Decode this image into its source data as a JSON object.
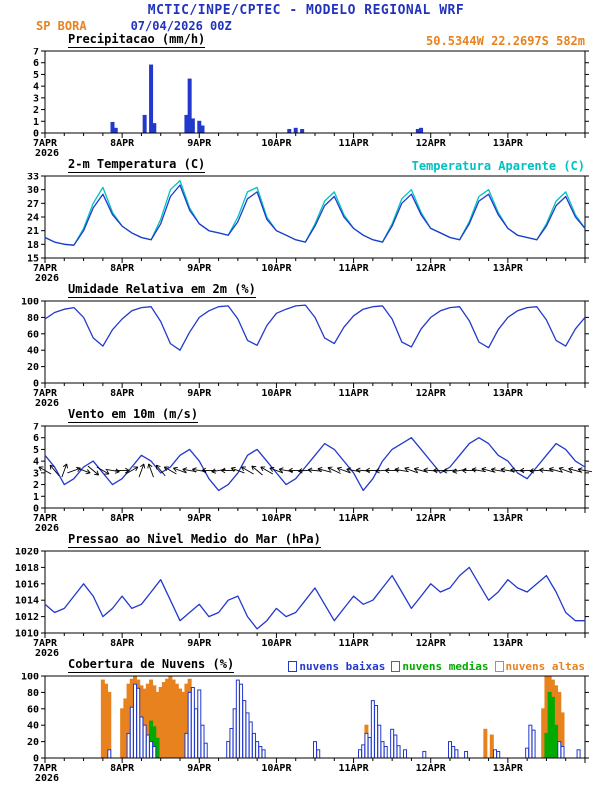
{
  "header": {
    "title": "MCTIC/INPE/CPTEC - MODELO REGIONAL WRF",
    "station": "SP BORA",
    "run": "07/04/2026 00Z",
    "location": "50.5344W 22.2697S 582m"
  },
  "colors": {
    "title_blue": "#2233bb",
    "orange": "#e8821e",
    "line_blue": "#2239cc",
    "cyan": "#00c2c2",
    "green": "#00aa00",
    "bar_blue": "#2239cc",
    "black": "#000000"
  },
  "xaxis": {
    "labels": [
      "7APR",
      "8APR",
      "9APR",
      "10APR",
      "11APR",
      "12APR",
      "13APR"
    ],
    "year": "2026",
    "hours_range": [
      0,
      168
    ],
    "tick_every_hours": 24,
    "minor_tick_hours": 6
  },
  "chart_data": [
    {
      "type": "bar",
      "kind": "precip",
      "title": "Precipitacao (mm/h)",
      "ylabel": "mm/h",
      "ylim": [
        0,
        7
      ],
      "yticks": [
        0,
        1,
        2,
        3,
        4,
        5,
        6,
        7
      ],
      "bars": [
        [
          21,
          0.9
        ],
        [
          22,
          0.4
        ],
        [
          31,
          1.5
        ],
        [
          33,
          5.8
        ],
        [
          34,
          0.8
        ],
        [
          44,
          1.5
        ],
        [
          45,
          4.6
        ],
        [
          46,
          1.2
        ],
        [
          48,
          1.0
        ],
        [
          49,
          0.6
        ],
        [
          76,
          0.3
        ],
        [
          78,
          0.4
        ],
        [
          80,
          0.3
        ],
        [
          116,
          0.3
        ],
        [
          117,
          0.4
        ]
      ]
    },
    {
      "type": "line",
      "kind": "lines",
      "title": "2-m Temperatura (C)",
      "legend_right": "Temperatura Aparente (C)",
      "ylabel": "C",
      "ylim": [
        15,
        33
      ],
      "yticks": [
        15,
        18,
        21,
        24,
        27,
        30,
        33
      ],
      "step": 3,
      "series": [
        {
          "name": "Temperatura Aparente (C)",
          "color": "#00c2c2",
          "values": [
            19.5,
            18.5,
            18,
            17.8,
            21.5,
            27,
            30.5,
            25,
            22,
            20.5,
            19.5,
            19,
            23.5,
            30,
            32,
            26,
            22.5,
            21,
            20.5,
            20,
            24,
            29.5,
            30.5,
            24,
            21,
            20,
            19,
            18.5,
            22.5,
            27.5,
            29.5,
            24.5,
            21.5,
            20,
            19,
            18.5,
            22.5,
            28,
            30,
            25,
            21.5,
            20.5,
            19.5,
            19,
            23,
            28.5,
            30,
            25,
            21.5,
            20,
            19.5,
            19,
            22.5,
            27.5,
            29.5,
            24.5,
            21.5
          ]
        },
        {
          "name": "2-m Temperatura (C)",
          "color": "#2239cc",
          "values": [
            19.5,
            18.5,
            18,
            17.8,
            21,
            26,
            29,
            24.5,
            22,
            20.5,
            19.5,
            19,
            22.5,
            28.5,
            31,
            25.5,
            22.5,
            21,
            20.5,
            20,
            23,
            28,
            29.5,
            23.5,
            21,
            20,
            19,
            18.5,
            22,
            26.5,
            28.5,
            24,
            21.5,
            20,
            19,
            18.5,
            22,
            27,
            29,
            24.5,
            21.5,
            20.5,
            19.5,
            19,
            22.5,
            27.5,
            29,
            24.5,
            21.5,
            20,
            19.5,
            19,
            22,
            26.5,
            28.5,
            24,
            21.5
          ]
        }
      ]
    },
    {
      "type": "line",
      "kind": "lines",
      "title": "Umidade Relativa em 2m (%)",
      "ylabel": "%",
      "ylim": [
        0,
        100
      ],
      "yticks": [
        0,
        20,
        40,
        60,
        80,
        100
      ],
      "step": 3,
      "series": [
        {
          "name": "Umidade Relativa",
          "color": "#2239cc",
          "values": [
            78,
            86,
            90,
            92,
            80,
            55,
            45,
            65,
            78,
            88,
            92,
            93,
            75,
            48,
            40,
            62,
            80,
            88,
            93,
            94,
            78,
            52,
            46,
            70,
            85,
            90,
            94,
            95,
            80,
            55,
            48,
            68,
            82,
            90,
            93,
            94,
            78,
            50,
            44,
            66,
            80,
            88,
            92,
            93,
            76,
            50,
            43,
            65,
            80,
            88,
            92,
            93,
            77,
            52,
            45,
            66,
            80
          ]
        }
      ]
    },
    {
      "type": "line",
      "kind": "wind",
      "title": "Vento em 10m (m/s)",
      "ylabel": "m/s",
      "ylim": [
        0,
        7
      ],
      "yticks": [
        0,
        1,
        2,
        3,
        4,
        5,
        6,
        7
      ],
      "step": 3,
      "series": [
        {
          "name": "Vento 10m",
          "color": "#2239cc",
          "values": [
            4.5,
            3.5,
            2,
            2.5,
            3.5,
            4,
            3,
            2,
            2.5,
            3.5,
            4.5,
            4,
            3,
            3.5,
            4.5,
            5,
            4,
            2.5,
            1.5,
            2,
            3,
            4.5,
            5,
            4,
            3,
            2,
            2.5,
            3.5,
            4.5,
            5.5,
            5,
            4,
            3,
            1.5,
            2.5,
            4,
            5,
            5.5,
            6,
            5,
            4,
            3,
            3.5,
            4.5,
            5.5,
            6,
            5.5,
            4.5,
            4,
            3,
            2.5,
            3.5,
            4.5,
            5.5,
            5,
            4,
            3.5
          ]
        }
      ],
      "arrows": {
        "color": "#000000",
        "baseline_value": 3.2,
        "dirs_deg": [
          120,
          140,
          200,
          250,
          290,
          310,
          300,
          280,
          270,
          240,
          200,
          160,
          140,
          120,
          110,
          100,
          100,
          90,
          80,
          90,
          110,
          120,
          130,
          120,
          110,
          100,
          90,
          85,
          95,
          105,
          115,
          110,
          100,
          95,
          90,
          85,
          90,
          100,
          110,
          105,
          95,
          90,
          85,
          80,
          90,
          100,
          105,
          100,
          100,
          95,
          90,
          85,
          95,
          105,
          110,
          105,
          100
        ]
      }
    },
    {
      "type": "line",
      "kind": "lines",
      "title": "Pressao ao Nivel Medio do Mar (hPa)",
      "ylabel": "hPa",
      "ylim": [
        1010,
        1020
      ],
      "yticks": [
        1010,
        1012,
        1014,
        1016,
        1018,
        1020
      ],
      "step": 3,
      "series": [
        {
          "name": "Pressao Nivel do Mar",
          "color": "#2239cc",
          "values": [
            1013.5,
            1012.5,
            1013,
            1014.5,
            1016,
            1014.5,
            1012,
            1013,
            1014.5,
            1013,
            1013.5,
            1015,
            1016.5,
            1014,
            1011.5,
            1012.5,
            1013.5,
            1012,
            1012.5,
            1014,
            1014.5,
            1012,
            1010.5,
            1011.5,
            1013,
            1012,
            1012.5,
            1014,
            1015.5,
            1013.5,
            1011.5,
            1013,
            1014.5,
            1013.5,
            1014,
            1015.5,
            1017,
            1015,
            1013,
            1014.5,
            1016,
            1015,
            1015.5,
            1017,
            1018,
            1016,
            1014,
            1015,
            1016.5,
            1015.5,
            1015,
            1016,
            1017,
            1015,
            1012.5,
            1011.5,
            1011.5
          ]
        }
      ]
    },
    {
      "type": "bar",
      "kind": "clouds",
      "title": "Cobertura de Nuvens (%)",
      "ylabel": "%",
      "ylim": [
        0,
        100
      ],
      "yticks": [
        0,
        20,
        40,
        60,
        80,
        100
      ],
      "legend": [
        {
          "label": "nuvens baixas",
          "color": "#2239cc"
        },
        {
          "label": "nuvens medias",
          "color": "#00aa00"
        },
        {
          "label": "nuvens altas",
          "color": "#e8821e"
        }
      ],
      "bar_series": [
        {
          "name": "nuvens altas",
          "color": "#e8821e",
          "fill": "solid",
          "points": [
            [
              18,
              95
            ],
            [
              19,
              90
            ],
            [
              20,
              80
            ],
            [
              24,
              60
            ],
            [
              25,
              72
            ],
            [
              26,
              90
            ],
            [
              27,
              96
            ],
            [
              28,
              100
            ],
            [
              29,
              95
            ],
            [
              30,
              88
            ],
            [
              31,
              84
            ],
            [
              32,
              90
            ],
            [
              33,
              95
            ],
            [
              34,
              88
            ],
            [
              35,
              80
            ],
            [
              36,
              86
            ],
            [
              37,
              92
            ],
            [
              38,
              96
            ],
            [
              39,
              100
            ],
            [
              40,
              95
            ],
            [
              41,
              90
            ],
            [
              42,
              84
            ],
            [
              43,
              80
            ],
            [
              44,
              90
            ],
            [
              45,
              96
            ],
            [
              46,
              70
            ],
            [
              47,
              40
            ],
            [
              100,
              40
            ],
            [
              137,
              35
            ],
            [
              139,
              28
            ],
            [
              155,
              60
            ],
            [
              156,
              100
            ],
            [
              157,
              100
            ],
            [
              158,
              95
            ],
            [
              159,
              88
            ],
            [
              160,
              80
            ],
            [
              161,
              55
            ]
          ]
        },
        {
          "name": "nuvens medias",
          "color": "#00aa00",
          "fill": "solid",
          "points": [
            [
              33,
              45
            ],
            [
              34,
              38
            ],
            [
              35,
              24
            ],
            [
              46,
              20
            ],
            [
              102,
              14
            ],
            [
              156,
              30
            ],
            [
              157,
              80
            ],
            [
              158,
              74
            ],
            [
              159,
              40
            ]
          ]
        },
        {
          "name": "nuvens baixas",
          "color": "#2239cc",
          "fill": "hollow",
          "points": [
            [
              20,
              10
            ],
            [
              26,
              30
            ],
            [
              27,
              62
            ],
            [
              28,
              90
            ],
            [
              29,
              85
            ],
            [
              30,
              50
            ],
            [
              31,
              40
            ],
            [
              32,
              28
            ],
            [
              33,
              20
            ],
            [
              34,
              14
            ],
            [
              44,
              30
            ],
            [
              45,
              80
            ],
            [
              46,
              86
            ],
            [
              47,
              60
            ],
            [
              48,
              83
            ],
            [
              49,
              40
            ],
            [
              50,
              18
            ],
            [
              57,
              20
            ],
            [
              58,
              36
            ],
            [
              59,
              60
            ],
            [
              60,
              95
            ],
            [
              61,
              90
            ],
            [
              62,
              70
            ],
            [
              63,
              55
            ],
            [
              64,
              44
            ],
            [
              65,
              30
            ],
            [
              66,
              20
            ],
            [
              67,
              14
            ],
            [
              68,
              10
            ],
            [
              84,
              20
            ],
            [
              85,
              10
            ],
            [
              98,
              10
            ],
            [
              99,
              16
            ],
            [
              100,
              30
            ],
            [
              101,
              25
            ],
            [
              102,
              70
            ],
            [
              103,
              64
            ],
            [
              104,
              40
            ],
            [
              105,
              20
            ],
            [
              106,
              14
            ],
            [
              108,
              35
            ],
            [
              109,
              28
            ],
            [
              110,
              15
            ],
            [
              112,
              10
            ],
            [
              118,
              8
            ],
            [
              126,
              20
            ],
            [
              127,
              14
            ],
            [
              128,
              10
            ],
            [
              131,
              8
            ],
            [
              140,
              10
            ],
            [
              141,
              8
            ],
            [
              150,
              12
            ],
            [
              151,
              40
            ],
            [
              152,
              34
            ],
            [
              160,
              20
            ],
            [
              161,
              14
            ],
            [
              166,
              10
            ]
          ]
        }
      ]
    }
  ]
}
